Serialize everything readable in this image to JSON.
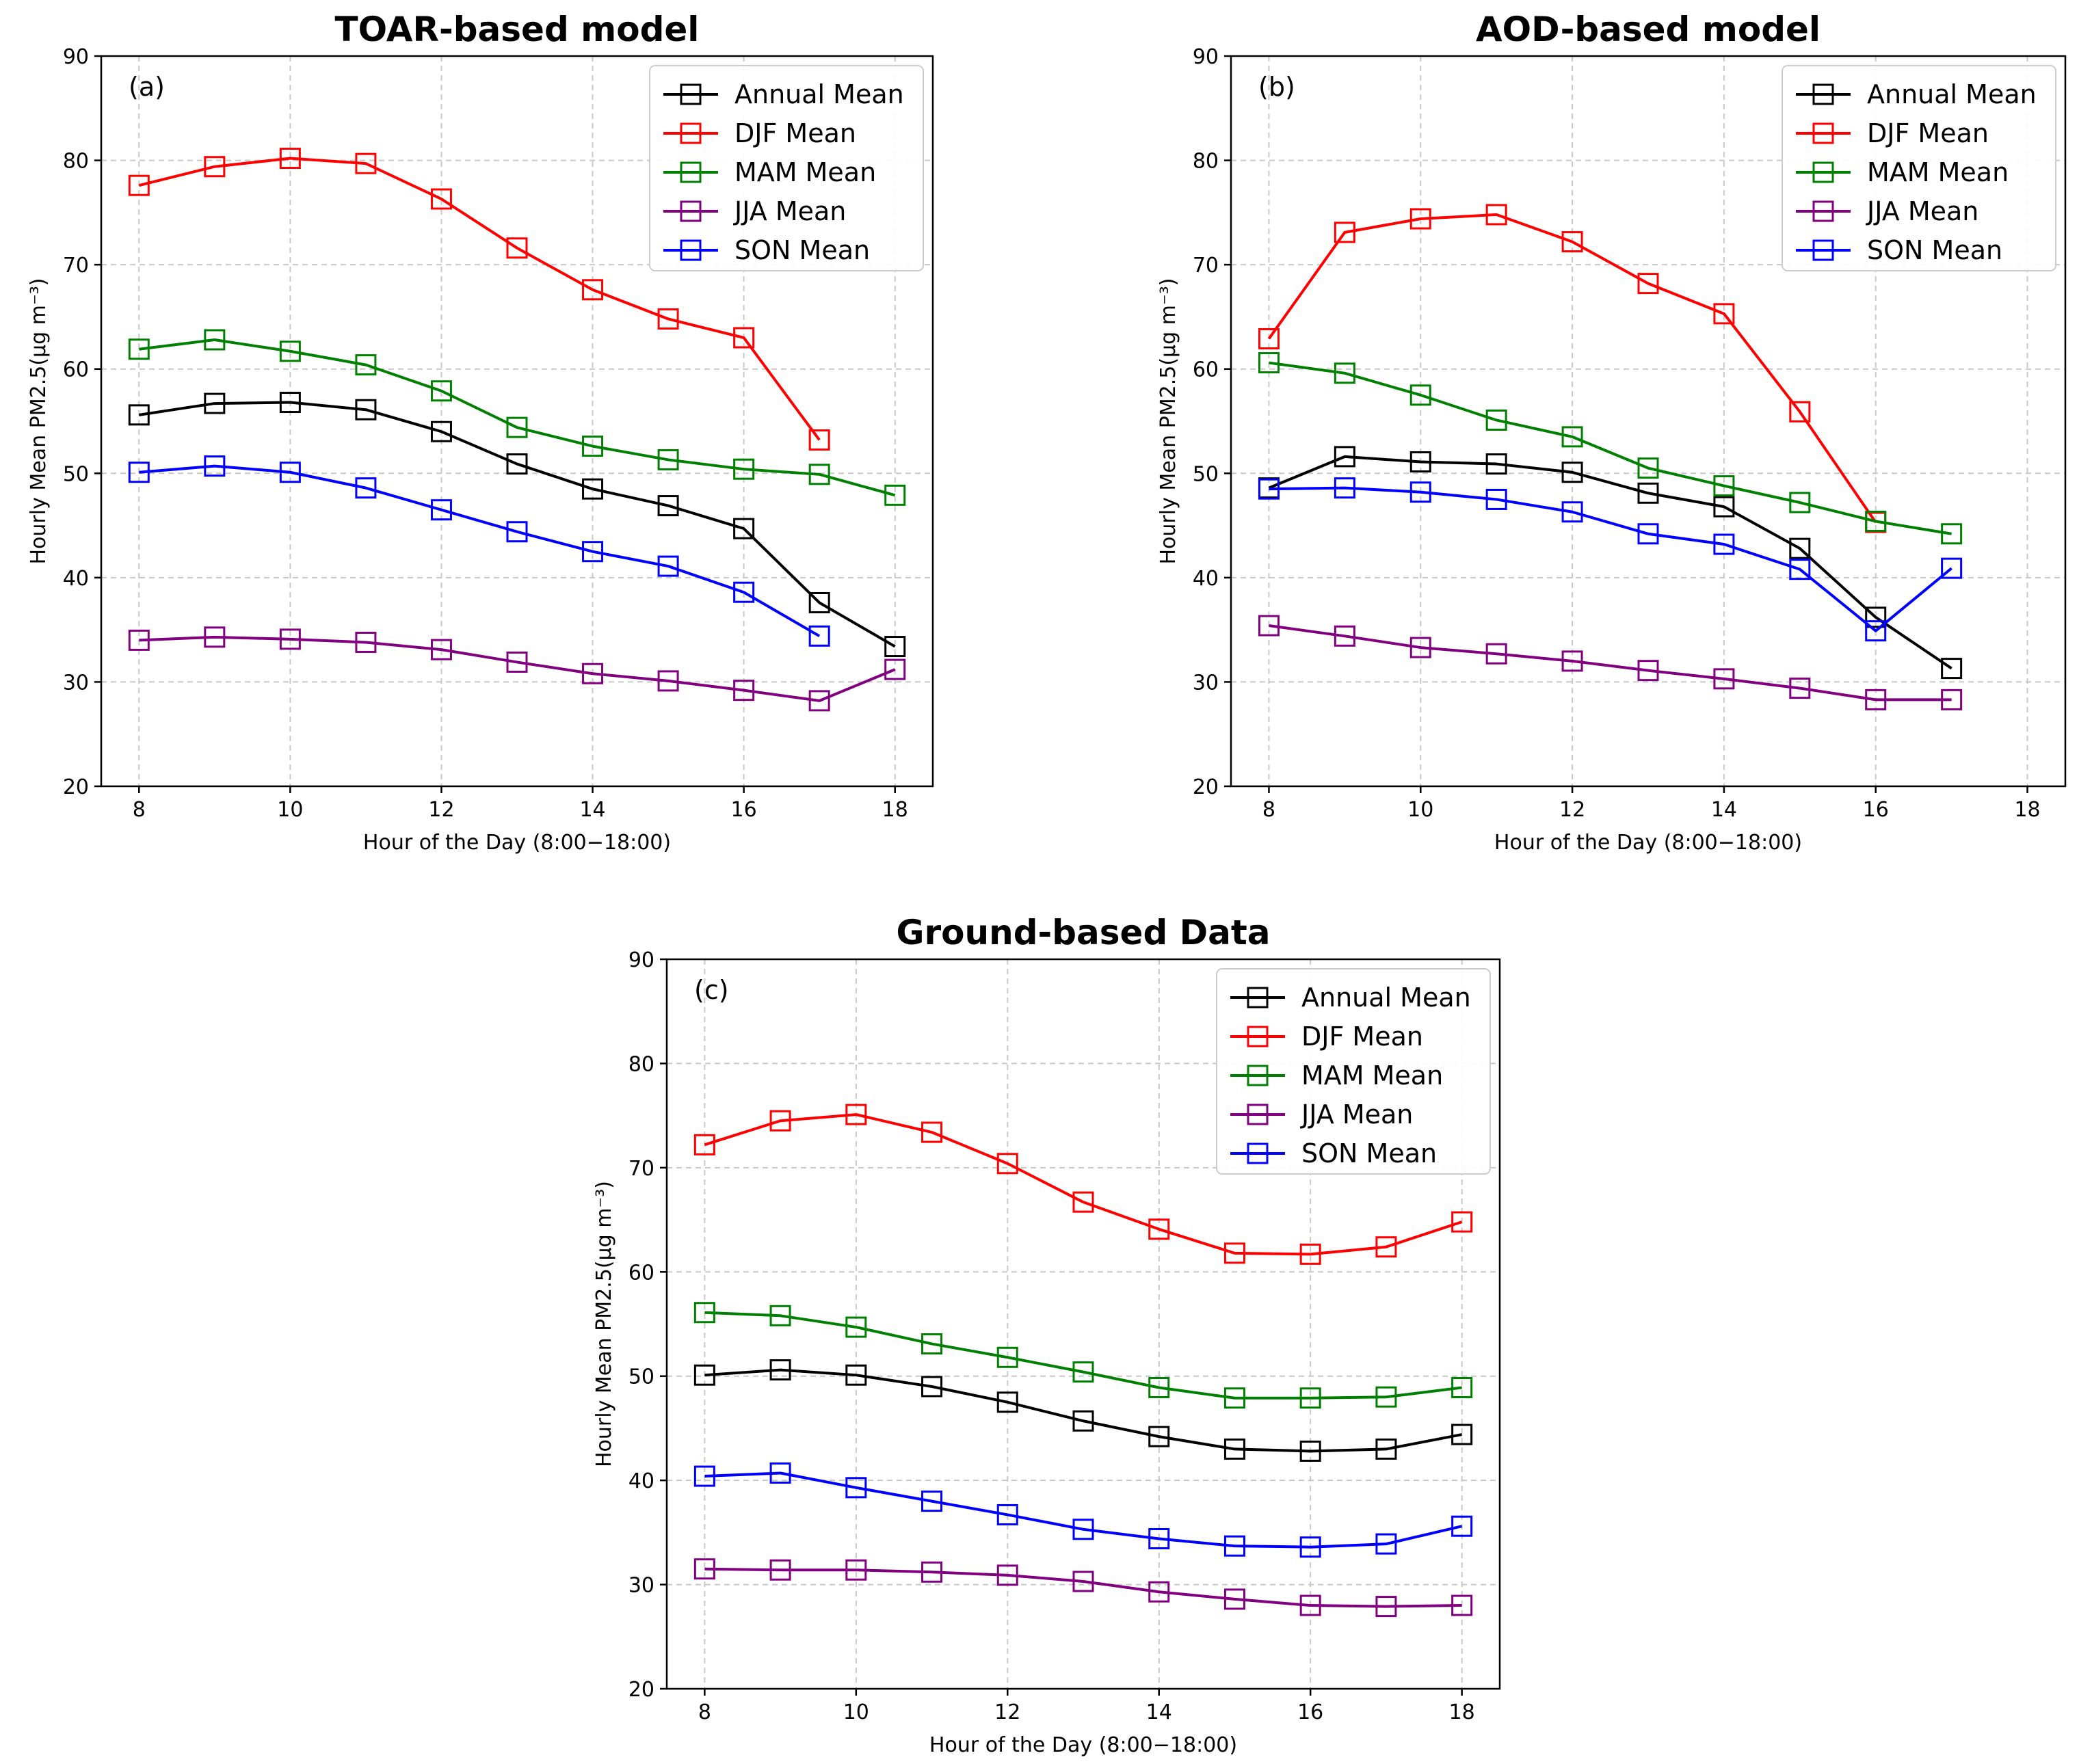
{
  "colors": {
    "Annual Mean": "#000000",
    "DJF Mean": "#ff0000",
    "MAM Mean": "#008000",
    "JJA Mean": "#800080",
    "SON Mean": "#0000ff"
  },
  "chart_data": [
    {
      "type": "line",
      "title": "TOAR-based model",
      "panel_label": "(a)",
      "xlabel": "Hour of the Day (8:00−18:00)",
      "ylabel": "Hourly Mean PM2.5(μg m⁻³)",
      "xlim": [
        7.5,
        18.5
      ],
      "ylim": [
        20,
        90
      ],
      "xticks": [
        8,
        10,
        12,
        14,
        16,
        18
      ],
      "yticks": [
        20,
        30,
        40,
        50,
        60,
        70,
        80,
        90
      ],
      "grid": true,
      "legend": "top-right",
      "marker": "square",
      "series": [
        {
          "name": "Annual Mean",
          "x": [
            8,
            9,
            10,
            11,
            12,
            13,
            14,
            15,
            16,
            17,
            18
          ],
          "values": [
            55.6,
            56.7,
            56.8,
            56.1,
            54.0,
            50.9,
            48.5,
            46.9,
            44.7,
            37.6,
            33.4
          ]
        },
        {
          "name": "DJF Mean",
          "x": [
            8,
            9,
            10,
            11,
            12,
            13,
            14,
            15,
            16,
            17
          ],
          "values": [
            77.6,
            79.4,
            80.2,
            79.7,
            76.3,
            71.6,
            67.6,
            64.8,
            63.0,
            53.2
          ]
        },
        {
          "name": "MAM Mean",
          "x": [
            8,
            9,
            10,
            11,
            12,
            13,
            14,
            15,
            16,
            17,
            18
          ],
          "values": [
            61.9,
            62.8,
            61.7,
            60.4,
            57.9,
            54.4,
            52.6,
            51.3,
            50.4,
            49.9,
            47.9
          ]
        },
        {
          "name": "JJA Mean",
          "x": [
            8,
            9,
            10,
            11,
            12,
            13,
            14,
            15,
            16,
            17,
            18
          ],
          "values": [
            34.0,
            34.3,
            34.1,
            33.8,
            33.1,
            31.9,
            30.8,
            30.1,
            29.2,
            28.2,
            31.2
          ]
        },
        {
          "name": "SON Mean",
          "x": [
            8,
            9,
            10,
            11,
            12,
            13,
            14,
            15,
            16,
            17
          ],
          "values": [
            50.1,
            50.7,
            50.1,
            48.6,
            46.5,
            44.4,
            42.5,
            41.1,
            38.6,
            34.4
          ]
        }
      ]
    },
    {
      "type": "line",
      "title": "AOD-based model",
      "panel_label": "(b)",
      "xlabel": "Hour of the Day (8:00−18:00)",
      "ylabel": "Hourly Mean PM2.5(μg m⁻³)",
      "xlim": [
        7.5,
        18.5
      ],
      "ylim": [
        20,
        90
      ],
      "xticks": [
        8,
        10,
        12,
        14,
        16,
        18
      ],
      "yticks": [
        20,
        30,
        40,
        50,
        60,
        70,
        80,
        90
      ],
      "grid": true,
      "legend": "top-right",
      "marker": "square",
      "series": [
        {
          "name": "Annual Mean",
          "x": [
            8,
            9,
            10,
            11,
            12,
            13,
            14,
            15,
            16,
            17
          ],
          "values": [
            48.6,
            51.6,
            51.1,
            50.9,
            50.1,
            48.1,
            46.8,
            42.8,
            36.2,
            31.3
          ]
        },
        {
          "name": "DJF Mean",
          "x": [
            8,
            9,
            10,
            11,
            12,
            13,
            14,
            15,
            16
          ],
          "values": [
            62.9,
            73.1,
            74.4,
            74.8,
            72.2,
            68.2,
            65.3,
            55.9,
            45.3
          ]
        },
        {
          "name": "MAM Mean",
          "x": [
            8,
            9,
            10,
            11,
            12,
            13,
            14,
            15,
            16,
            17
          ],
          "values": [
            60.6,
            59.6,
            57.5,
            55.1,
            53.5,
            50.5,
            48.8,
            47.2,
            45.4,
            44.2
          ]
        },
        {
          "name": "JJA Mean",
          "x": [
            8,
            9,
            10,
            11,
            12,
            13,
            14,
            15,
            16,
            17
          ],
          "values": [
            35.4,
            34.4,
            33.3,
            32.7,
            32.0,
            31.1,
            30.3,
            29.4,
            28.3,
            28.3
          ]
        },
        {
          "name": "SON Mean",
          "x": [
            8,
            9,
            10,
            11,
            12,
            13,
            14,
            15,
            16,
            17
          ],
          "values": [
            48.5,
            48.6,
            48.2,
            47.5,
            46.3,
            44.2,
            43.2,
            40.8,
            34.9,
            40.9
          ]
        }
      ]
    },
    {
      "type": "line",
      "title": "Ground-based Data",
      "panel_label": "(c)",
      "xlabel": "Hour of the Day (8:00−18:00)",
      "ylabel": "Hourly Mean PM2.5(μg m⁻³)",
      "xlim": [
        7.5,
        18.5
      ],
      "ylim": [
        20,
        90
      ],
      "xticks": [
        8,
        10,
        12,
        14,
        16,
        18
      ],
      "yticks": [
        20,
        30,
        40,
        50,
        60,
        70,
        80,
        90
      ],
      "grid": true,
      "legend": "top-right",
      "marker": "square",
      "series": [
        {
          "name": "Annual Mean",
          "x": [
            8,
            9,
            10,
            11,
            12,
            13,
            14,
            15,
            16,
            17,
            18
          ],
          "values": [
            50.1,
            50.6,
            50.1,
            49.0,
            47.5,
            45.7,
            44.2,
            43.0,
            42.8,
            43.0,
            44.4
          ]
        },
        {
          "name": "DJF Mean",
          "x": [
            8,
            9,
            10,
            11,
            12,
            13,
            14,
            15,
            16,
            17,
            18
          ],
          "values": [
            72.2,
            74.5,
            75.1,
            73.4,
            70.4,
            66.7,
            64.1,
            61.8,
            61.7,
            62.4,
            64.8
          ]
        },
        {
          "name": "MAM Mean",
          "x": [
            8,
            9,
            10,
            11,
            12,
            13,
            14,
            15,
            16,
            17,
            18
          ],
          "values": [
            56.1,
            55.8,
            54.7,
            53.1,
            51.8,
            50.4,
            48.9,
            47.9,
            47.9,
            48.0,
            48.9
          ]
        },
        {
          "name": "JJA Mean",
          "x": [
            8,
            9,
            10,
            11,
            12,
            13,
            14,
            15,
            16,
            17,
            18
          ],
          "values": [
            31.5,
            31.4,
            31.4,
            31.2,
            30.9,
            30.3,
            29.3,
            28.6,
            28.0,
            27.9,
            28.0
          ]
        },
        {
          "name": "SON Mean",
          "x": [
            8,
            9,
            10,
            11,
            12,
            13,
            14,
            15,
            16,
            17,
            18
          ],
          "values": [
            40.4,
            40.7,
            39.3,
            38.0,
            36.7,
            35.3,
            34.4,
            33.7,
            33.6,
            33.9,
            35.6
          ]
        }
      ]
    }
  ]
}
